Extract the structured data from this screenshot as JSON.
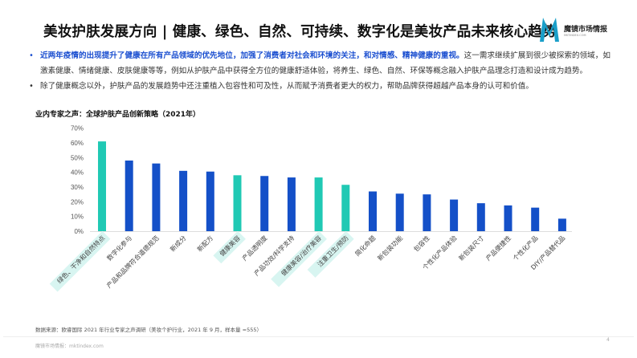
{
  "header": {
    "title": "美妆护肤发展方向 | 健康、绿色、自然、可持续、数字化是美妆产品未来核心趋势",
    "logo_text": "魔镜市场情报",
    "logo_sub": "MKTINDEX.COM"
  },
  "bullets": [
    {
      "highlight": "近两年疫情的出现提升了健康在所有产品领域的优先地位，加强了消费者对社会和环境的关注，和对情感、精神健康的重视。",
      "text": "这一需求继续扩展到很少被探索的领域，如激素健康、情绪健康、皮肤健康等等，例如从护肤产品中获得全方位的健康舒适体验，将养生、绿色、自然、环保等概念融入护肤产品理念打造和设计成为趋势。"
    },
    {
      "highlight": "",
      "text": "除了健康概念以外，护肤产品的发展趋势中还注重植入包容性和可及性，从而赋予消费者更大的权力，帮助品牌获得超越产品本身的认可和价值。"
    }
  ],
  "chart_data": {
    "type": "bar",
    "title": "业内专家之声：全球护肤产品创新策略（2021年）",
    "categories": [
      "绿色、干净和自然特点",
      "数字化参与",
      "产品和品牌符合道德规范",
      "新成分",
      "新配方",
      "健康美容",
      "产品透明度",
      "产品功效/科学支持",
      "健康美容/治疗美容",
      "注重卫生/预防",
      "简化命题",
      "新包装功能",
      "包容性",
      "个性化产品体验",
      "新包装尺寸",
      "产品便捷性",
      "个性化产品",
      "DIY/产品替代品"
    ],
    "values": [
      61,
      48,
      46,
      41,
      40.5,
      38,
      37.5,
      36.5,
      36.5,
      31.5,
      27,
      25.5,
      25,
      21.5,
      19,
      17.5,
      16,
      8.5
    ],
    "highlighted": [
      true,
      false,
      false,
      false,
      false,
      true,
      false,
      false,
      true,
      true,
      false,
      false,
      false,
      false,
      false,
      false,
      false,
      false
    ],
    "ylim": [
      0,
      70
    ],
    "yticks": [
      "0%",
      "10%",
      "20%",
      "30%",
      "40%",
      "50%",
      "60%",
      "70%"
    ],
    "colors": {
      "bar": "#1450c8",
      "highlight": "#20c9b4",
      "label_bg": "#d8f5f1"
    },
    "grid": false
  },
  "footer": {
    "source": "数据来源：欧睿国际 2021 年行业专家之声调研（美妆个护行业，2021 年 9 月，样本量 =555）",
    "site": "魔镜市场情报：mktindex.com",
    "page": "4"
  }
}
